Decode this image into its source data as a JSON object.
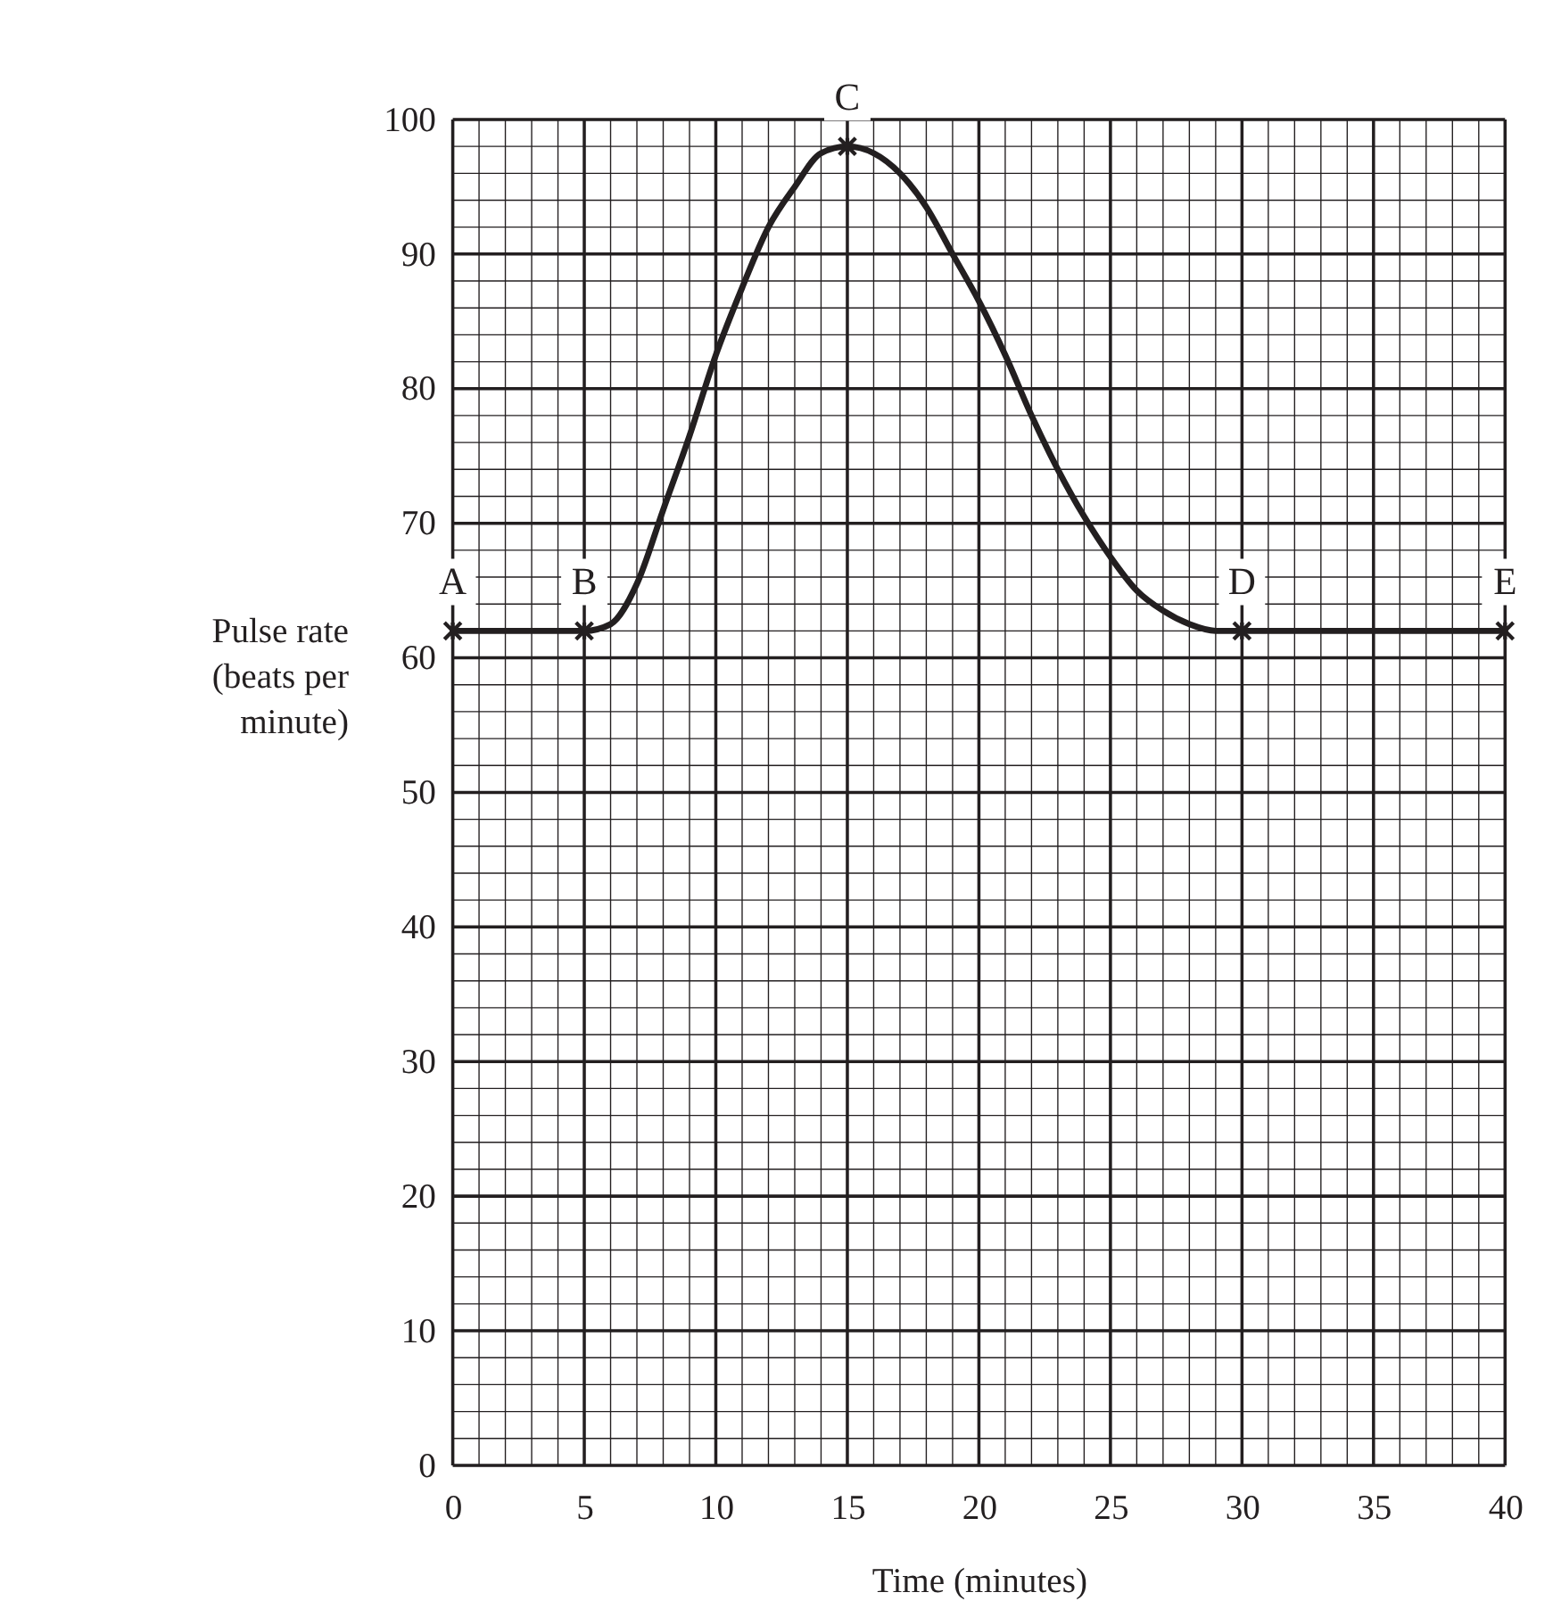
{
  "chart_data": {
    "type": "line",
    "xlabel": "Time (minutes)",
    "ylabel": "Pulse rate\n(beats per\nminute)",
    "xlim": [
      0,
      40
    ],
    "ylim": [
      0,
      100
    ],
    "xticks": [
      0,
      5,
      10,
      15,
      20,
      25,
      30,
      35,
      40
    ],
    "yticks": [
      0,
      10,
      20,
      30,
      40,
      50,
      60,
      70,
      80,
      90,
      100
    ],
    "grid": true,
    "series": [
      {
        "color": "#231f20",
        "marker": "none",
        "x": [
          0,
          5,
          6,
          7,
          8,
          9,
          10,
          11,
          12,
          13,
          14,
          15,
          16,
          17,
          18,
          19,
          20,
          21,
          22,
          23,
          24,
          25,
          26,
          27,
          28,
          29,
          30,
          40
        ],
        "values": [
          62,
          62,
          62.5,
          65.5,
          71,
          76.5,
          82.5,
          87.5,
          92,
          95,
          97.5,
          98,
          97.5,
          96,
          93.5,
          90,
          86.5,
          82.5,
          78,
          74,
          70.5,
          67.5,
          65,
          63.5,
          62.5,
          62,
          62,
          62
        ]
      },
      {
        "type": "scatter",
        "color": "#231f20",
        "marker": "cross",
        "x": [
          0,
          5,
          15,
          30,
          40
        ],
        "values": [
          62,
          62,
          98,
          62,
          62
        ]
      }
    ],
    "annotations": [
      {
        "text": "A",
        "x": 0,
        "y": 62
      },
      {
        "text": "B",
        "x": 5,
        "y": 62
      },
      {
        "text": "C",
        "x": 15,
        "y": 98
      },
      {
        "text": "D",
        "x": 30,
        "y": 62
      },
      {
        "text": "E",
        "x": 40,
        "y": 62
      }
    ]
  }
}
